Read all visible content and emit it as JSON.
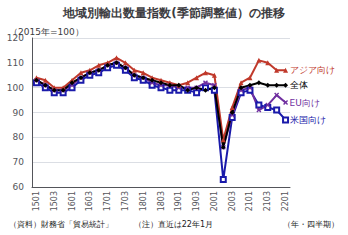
{
  "chart_data": {
    "type": "line",
    "title": "地域別輸出数量指数(季節調整値）の推移",
    "subtitle": "（2015年=100）",
    "source": "（資料）財務省「貿易統計」",
    "note": "（注）直近は22年1月",
    "xlabel": "（年・四半期）",
    "categories": [
      "1501",
      null,
      "1503",
      null,
      "1601",
      null,
      "1603",
      null,
      "1701",
      null,
      "1703",
      null,
      "1801",
      null,
      "1803",
      null,
      "1901",
      null,
      "1903",
      null,
      "2001",
      null,
      "2003",
      null,
      "2101",
      null,
      "2103",
      null,
      "2201"
    ],
    "series": [
      {
        "name": "米国向け",
        "color": "#1a1aaa",
        "marker": "square",
        "values": [
          102,
          100,
          98,
          98,
          100,
          103,
          105,
          106,
          108,
          109,
          107,
          104,
          103,
          101,
          100,
          99,
          99,
          99,
          98,
          100,
          99,
          63,
          88,
          98,
          99,
          93,
          92,
          91,
          87
        ]
      },
      {
        "name": "EU向け",
        "color": "#7030a0",
        "marker": "x",
        "values": [
          103,
          101,
          99,
          99,
          101,
          104,
          106,
          107,
          109,
          110,
          108,
          105,
          104,
          102,
          101,
          101,
          100,
          100,
          100,
          102,
          101,
          76,
          89,
          99,
          100,
          91,
          93,
          97,
          94
        ]
      },
      {
        "name": "アジア向け",
        "color": "#c0392b",
        "marker": "triangle",
        "values": [
          104,
          103,
          100,
          100,
          103,
          106,
          107,
          109,
          110,
          112,
          110,
          107,
          106,
          104,
          103,
          102,
          101,
          102,
          104,
          106,
          105,
          79,
          92,
          102,
          104,
          111,
          110,
          107,
          107
        ]
      },
      {
        "name": "全体",
        "color": "#000000",
        "marker": "diamond",
        "values": [
          103,
          101,
          99,
          99,
          102,
          104,
          106,
          107,
          109,
          110,
          108,
          105,
          104,
          103,
          102,
          101,
          101,
          99,
          100,
          99,
          100,
          76,
          90,
          100,
          101,
          102,
          101,
          101,
          101
        ]
      }
    ],
    "ylim": [
      60,
      120
    ],
    "yticks": [
      60,
      70,
      80,
      90,
      100,
      110,
      120
    ],
    "grid": true
  }
}
